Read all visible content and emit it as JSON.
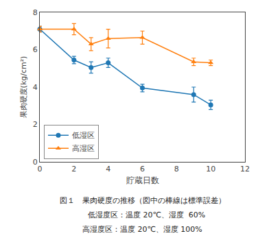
{
  "chart_data": {
    "type": "line",
    "title": "図１　果肉硬度の推移（図中の棒線は標準誤差）",
    "subtitle": [
      "　低湿度区：温度 20℃、湿度  60%",
      "高湿度区：温度 20℃、湿度 100%"
    ],
    "x_label": "貯蔵日数",
    "y_label": "果肉硬度(kg/cm²)",
    "x": [
      0,
      2,
      3,
      4,
      6,
      9,
      10
    ],
    "series": [
      {
        "name": "低湿区",
        "values": [
          7.1,
          5.45,
          5.05,
          5.3,
          3.95,
          3.6,
          3.05
        ],
        "yerr": [
          0.15,
          0.2,
          0.3,
          0.25,
          0.2,
          0.4,
          0.25
        ],
        "marker": "circle",
        "line_style": "solid"
      },
      {
        "name": "高湿区",
        "values": [
          7.1,
          7.1,
          6.3,
          6.6,
          6.65,
          5.35,
          5.3
        ],
        "yerr": [
          0.15,
          0.3,
          0.35,
          0.5,
          0.35,
          0.2,
          0.15
        ],
        "marker": "triangle-up",
        "line_style": "solid"
      }
    ],
    "xlim": [
      0,
      12
    ],
    "ylim": [
      0,
      8
    ],
    "xticks": [
      0,
      2,
      4,
      6,
      8,
      10,
      12
    ],
    "yticks": [
      0,
      2,
      4,
      6,
      8
    ],
    "grid": false,
    "legend": "lower left"
  }
}
